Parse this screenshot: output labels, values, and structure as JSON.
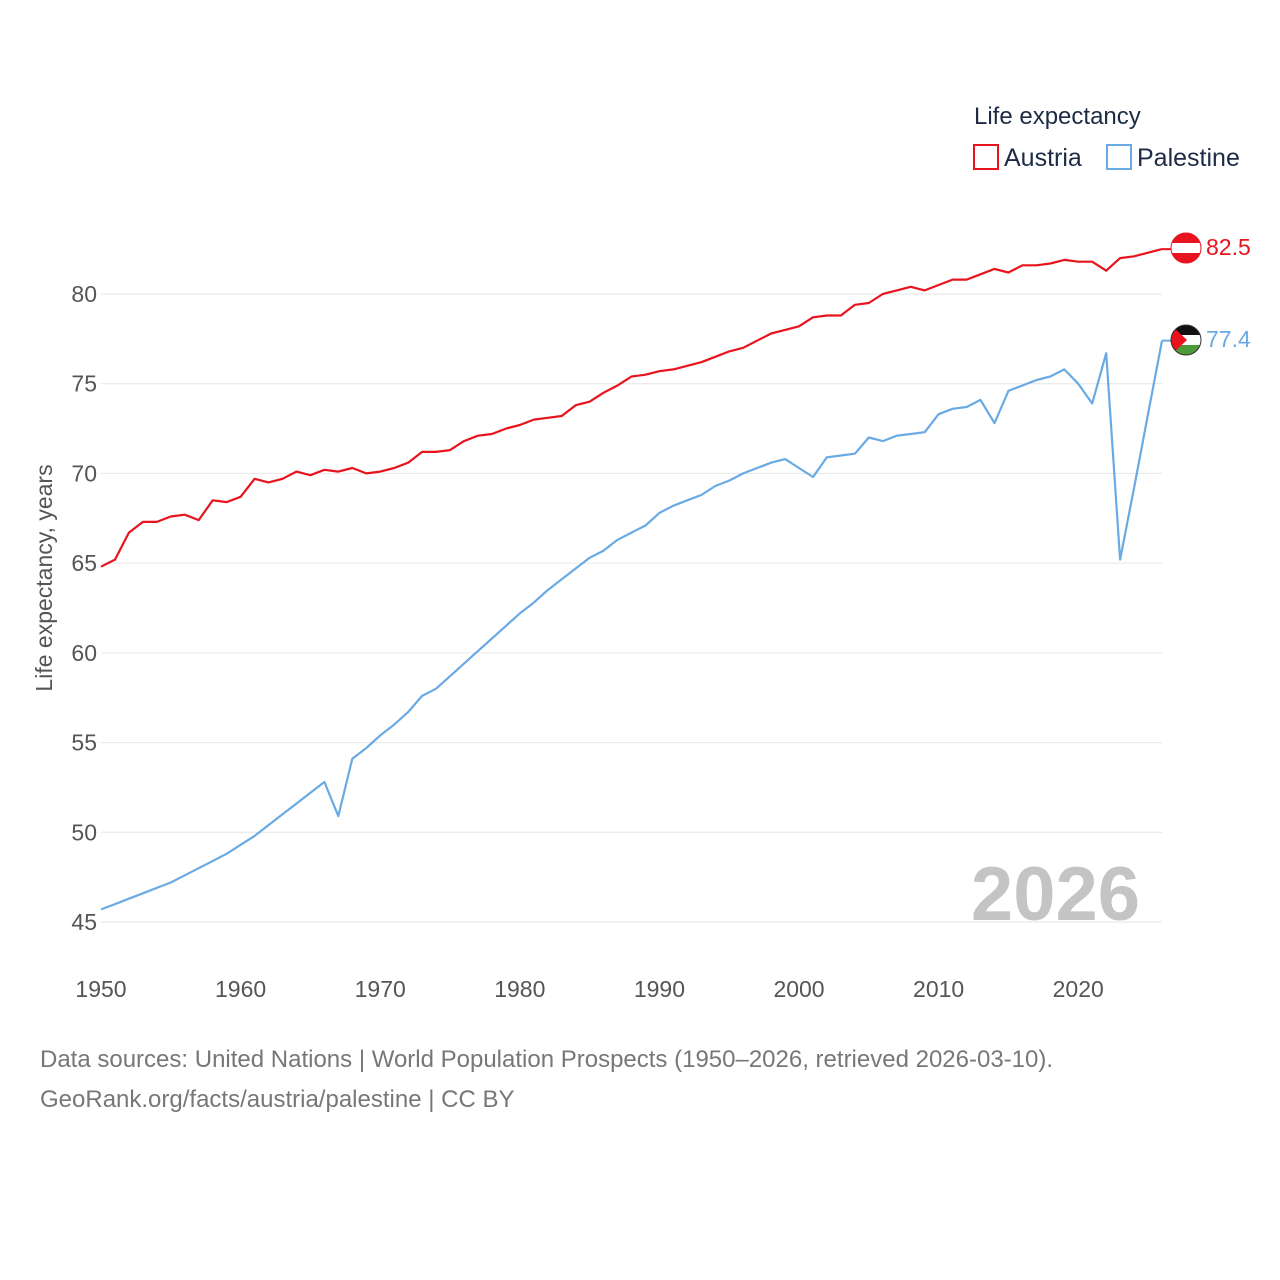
{
  "legend": {
    "title": "Life expectancy",
    "items": [
      {
        "label": "Austria",
        "color": "#e8131d"
      },
      {
        "label": "Palestine",
        "color": "#6aaae4"
      }
    ]
  },
  "year_overlay": "2026",
  "footer": {
    "line1": "Data sources: United Nations | World Population Prospects (1950–2026, retrieved 2026-03-10).",
    "line2": "GeoRank.org/facts/austria/palestine | CC BY"
  },
  "end_labels": {
    "austria": "82.5",
    "palestine": "77.4"
  },
  "chart_data": {
    "type": "line",
    "title": "Life expectancy",
    "xlabel": "",
    "ylabel": "Life expectancy, years",
    "xlim": [
      1950,
      2026
    ],
    "ylim": [
      45,
      83
    ],
    "xticks": [
      1950,
      1960,
      1970,
      1980,
      1990,
      2000,
      2010,
      2020
    ],
    "yticks": [
      45,
      50,
      55,
      60,
      65,
      70,
      75,
      80
    ],
    "grid": true,
    "legend_position": "top-right",
    "x": [
      1950,
      1951,
      1952,
      1953,
      1954,
      1955,
      1956,
      1957,
      1958,
      1959,
      1960,
      1961,
      1962,
      1963,
      1964,
      1965,
      1966,
      1967,
      1968,
      1969,
      1970,
      1971,
      1972,
      1973,
      1974,
      1975,
      1976,
      1977,
      1978,
      1979,
      1980,
      1981,
      1982,
      1983,
      1984,
      1985,
      1986,
      1987,
      1988,
      1989,
      1990,
      1991,
      1992,
      1993,
      1994,
      1995,
      1996,
      1997,
      1998,
      1999,
      2000,
      2001,
      2002,
      2003,
      2004,
      2005,
      2006,
      2007,
      2008,
      2009,
      2010,
      2011,
      2012,
      2013,
      2014,
      2015,
      2016,
      2017,
      2018,
      2019,
      2020,
      2021,
      2022,
      2023,
      2024,
      2025,
      2026
    ],
    "series": [
      {
        "name": "Austria",
        "color": "#e8131d",
        "values": [
          64.8,
          65.2,
          66.7,
          67.3,
          67.3,
          67.6,
          67.7,
          67.4,
          68.5,
          68.4,
          68.7,
          69.7,
          69.5,
          69.7,
          70.1,
          69.9,
          70.2,
          70.1,
          70.3,
          70.0,
          70.1,
          70.3,
          70.6,
          71.2,
          71.2,
          71.3,
          71.8,
          72.1,
          72.2,
          72.5,
          72.7,
          73.0,
          73.1,
          73.2,
          73.8,
          74.0,
          74.5,
          74.9,
          75.4,
          75.5,
          75.7,
          75.8,
          76.0,
          76.2,
          76.5,
          76.8,
          77.0,
          77.4,
          77.8,
          78.0,
          78.2,
          78.7,
          78.8,
          78.8,
          79.4,
          79.5,
          80.0,
          80.2,
          80.4,
          80.2,
          80.5,
          80.8,
          80.8,
          81.1,
          81.4,
          81.2,
          81.6,
          81.6,
          81.7,
          81.9,
          81.8,
          81.8,
          81.3,
          82.0,
          82.1,
          82.3,
          82.5
        ]
      },
      {
        "name": "Palestine",
        "color": "#6aaae4",
        "values": [
          45.7,
          46.0,
          46.3,
          46.6,
          46.9,
          47.2,
          47.6,
          48.0,
          48.4,
          48.8,
          49.3,
          49.8,
          50.4,
          51.0,
          51.6,
          52.2,
          52.8,
          50.9,
          54.1,
          54.7,
          55.4,
          56.0,
          56.7,
          57.6,
          58.0,
          58.7,
          59.4,
          60.1,
          60.8,
          61.5,
          62.2,
          62.8,
          63.5,
          64.1,
          64.7,
          65.3,
          65.7,
          66.3,
          66.7,
          67.1,
          67.8,
          68.2,
          68.5,
          68.8,
          69.3,
          69.6,
          70.0,
          70.3,
          70.6,
          70.8,
          70.3,
          69.8,
          70.9,
          71.0,
          71.1,
          72.0,
          71.8,
          72.1,
          72.2,
          72.3,
          73.3,
          73.6,
          73.7,
          74.1,
          72.8,
          74.6,
          74.9,
          75.2,
          75.4,
          75.8,
          75.0,
          73.9,
          76.7,
          65.2,
          69.2,
          73.3,
          77.4
        ]
      }
    ]
  }
}
